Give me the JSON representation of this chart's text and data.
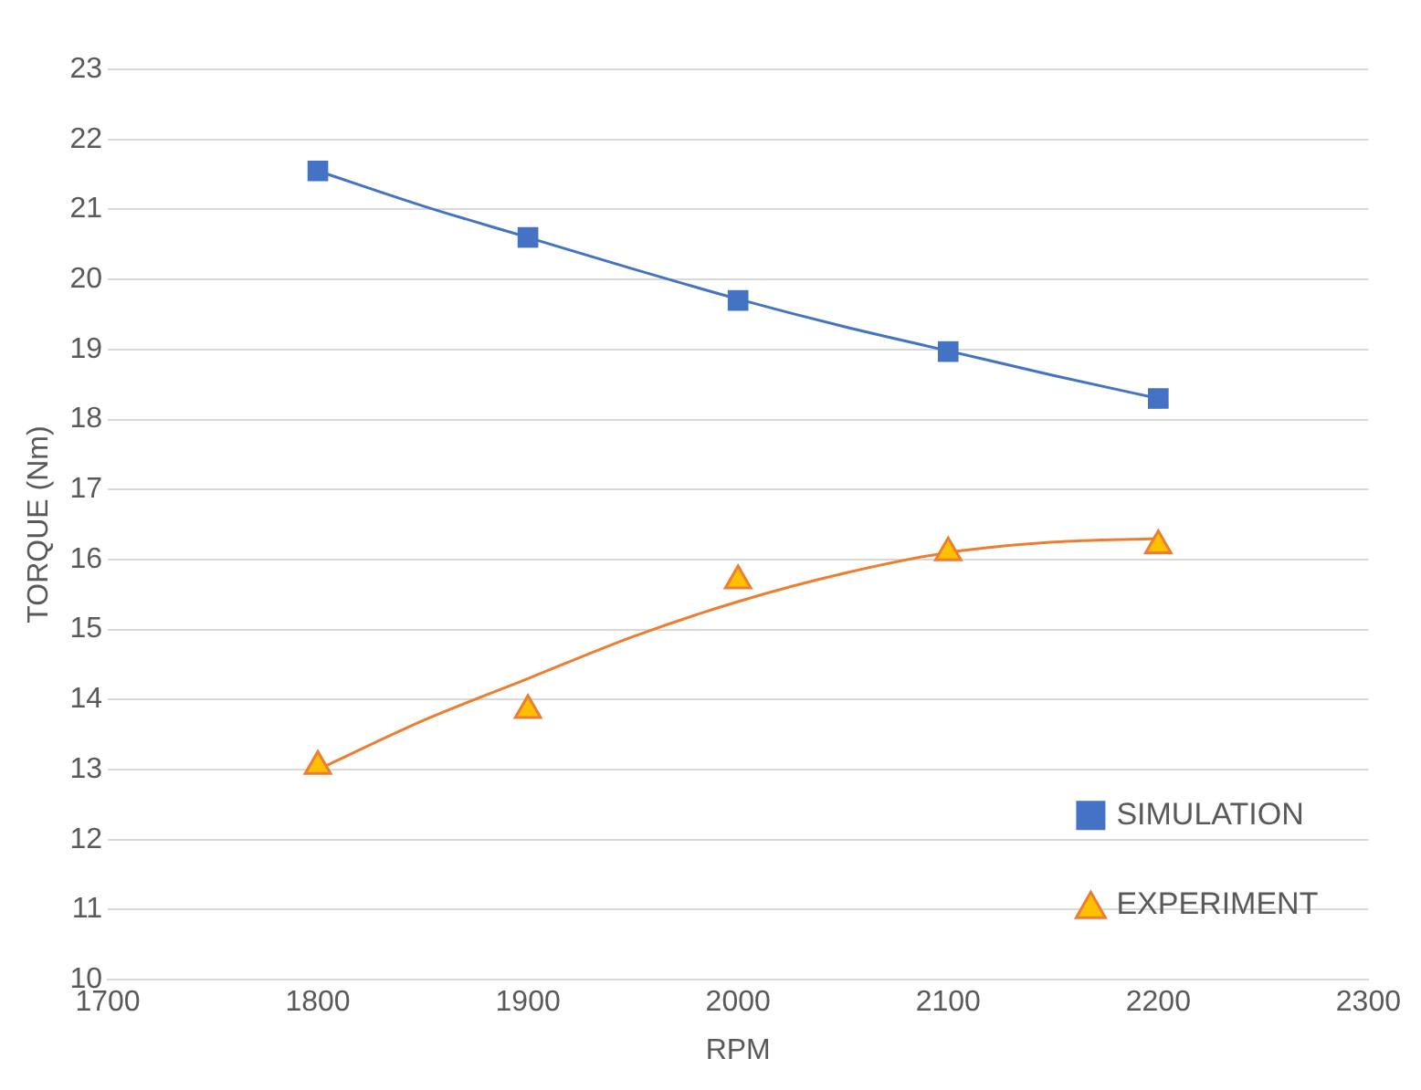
{
  "chart_data": {
    "type": "scatter",
    "xlabel": "RPM",
    "ylabel": "TORQUE (Nm)",
    "xlim": [
      1700,
      2300
    ],
    "xticks": [
      1700,
      1800,
      1900,
      2000,
      2100,
      2200,
      2300
    ],
    "ylim": [
      10,
      23
    ],
    "yticks": [
      10,
      11,
      12,
      13,
      14,
      15,
      16,
      17,
      18,
      19,
      20,
      21,
      22,
      23
    ],
    "grid": "y",
    "legend": "bottom right",
    "series": [
      {
        "name": "SIMULATION",
        "type": "scatter",
        "marker": "square",
        "color": "#4472c4",
        "x": [
          1800,
          1900,
          2000,
          2100,
          2200
        ],
        "values": [
          21.55,
          20.6,
          19.7,
          18.97,
          18.3
        ]
      },
      {
        "name": "EXPERIMENT",
        "type": "scatter",
        "marker": "triangle",
        "color": "#ed7d31",
        "x": [
          1800,
          1900,
          2000,
          2100,
          2200
        ],
        "values": [
          13.05,
          13.85,
          15.7,
          16.1,
          16.2
        ]
      },
      {
        "type": "line",
        "marker": "none",
        "color": "#4472c4",
        "x": [
          1800,
          1850,
          1900,
          1950,
          2000,
          2050,
          2100,
          2150,
          2200
        ],
        "values": [
          21.55,
          21.05,
          20.6,
          20.15,
          19.72,
          19.33,
          18.98,
          18.63,
          18.3
        ]
      },
      {
        "type": "line",
        "marker": "none",
        "color": "#ed7d31",
        "x": [
          1800,
          1850,
          1900,
          1950,
          2000,
          2050,
          2100,
          2150,
          2200
        ],
        "values": [
          13.0,
          13.7,
          14.3,
          14.9,
          15.4,
          15.8,
          16.1,
          16.25,
          16.3
        ]
      }
    ]
  }
}
